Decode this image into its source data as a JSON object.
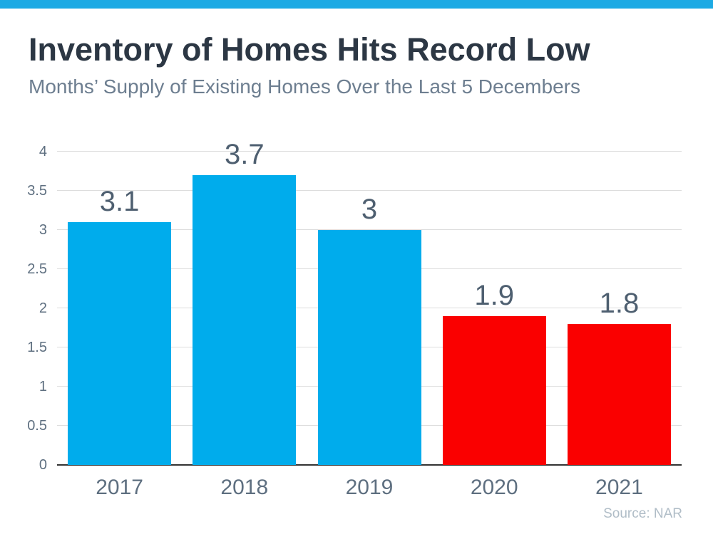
{
  "page": {
    "accent_stripe_color": "#1caae4",
    "background_color": "#ffffff"
  },
  "header": {
    "title": "Inventory of Homes Hits Record Low",
    "subtitle": "Months’ Supply of Existing Homes Over the Last 5 Decembers"
  },
  "source": {
    "label": "Source: NAR"
  },
  "chart_data": {
    "type": "bar",
    "title": "Inventory of Homes Hits Record Low",
    "subtitle": "Months’ Supply of Existing Homes Over the Last 5 Decembers",
    "categories": [
      "2017",
      "2018",
      "2019",
      "2020",
      "2021"
    ],
    "values": [
      3.1,
      3.7,
      3,
      1.9,
      1.8
    ],
    "value_labels": [
      "3.1",
      "3.7",
      "3",
      "1.9",
      "1.8"
    ],
    "bar_colors": [
      "#00acec",
      "#00acec",
      "#00acec",
      "#fa0000",
      "#fa0000"
    ],
    "ylim": [
      0,
      4
    ],
    "yticks": [
      0,
      0.5,
      1,
      1.5,
      2,
      2.5,
      3,
      3.5,
      4
    ],
    "ytick_labels": [
      "0",
      "0.5",
      "1",
      "1.5",
      "2",
      "2.5",
      "3",
      "3.5",
      "4"
    ],
    "grid": true,
    "gridline_color": "#dddddd",
    "axis_line_color": "#333333",
    "value_label_color": "#4e5f70",
    "tick_label_color": "#5e6f80",
    "legend": "none",
    "annotation": "Source: NAR"
  }
}
